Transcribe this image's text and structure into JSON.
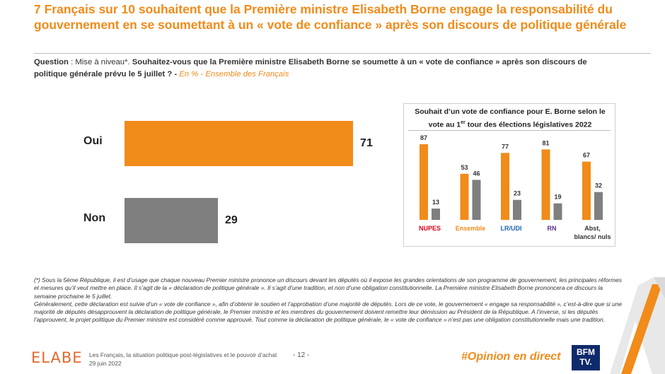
{
  "title": "7 Français sur 10 souhaitent que la Première ministre Elisabeth Borne engage la responsabilité du gouvernement en se soumettant à un « vote de confiance » après son discours de politique générale",
  "question": {
    "label": "Question",
    "sep": " : Mise à niveau*. ",
    "text": "Souhaitez-vous que la Première ministre Elisabeth Borne se soumette à un « vote de confiance » après son discours de politique générale prévu le 5 juillet ? -",
    "base": " En % - Ensemble des Français"
  },
  "colors": {
    "orange": "#f18b1a",
    "grey": "#7f7f7f"
  },
  "chart_data": [
    {
      "type": "bar",
      "orientation": "horizontal",
      "categories": [
        "Oui",
        "Non"
      ],
      "values": [
        71,
        29
      ],
      "unit": "%",
      "colors": [
        "#f18b1a",
        "#7f7f7f"
      ]
    },
    {
      "type": "bar",
      "title_line1": "Souhait d’un vote de confiance pour E. Borne selon le",
      "title_line2_a": "vote au 1",
      "title_line2_sup": "er",
      "title_line2_b": " tour des élections législatives 2022",
      "categories": [
        "NUPES",
        "Ensemble",
        "LR/UDI",
        "RN",
        "Abst, blancs/ nuls"
      ],
      "category_lines": [
        [
          "NUPES"
        ],
        [
          "Ensemble"
        ],
        [
          "LR/UDI"
        ],
        [
          "RN"
        ],
        [
          "Abst,",
          "blancs/ nuls"
        ]
      ],
      "category_colors": [
        "#e2001a",
        "#f18b1a",
        "#1f64b4",
        "#5b2d8e",
        "#333333"
      ],
      "series": [
        {
          "name": "Oui",
          "color": "#f18b1a",
          "values": [
            87,
            53,
            77,
            81,
            67
          ]
        },
        {
          "name": "Non",
          "color": "#7f7f7f",
          "values": [
            13,
            46,
            23,
            19,
            32
          ]
        }
      ],
      "ylim": [
        0,
        100
      ]
    }
  ],
  "note": {
    "p1": "(*) Sous la 5ème République, il est d’usage que chaque nouveau Premier ministre prononce un discours devant les députés où il expose les grandes orientations de son programme de gouvernement, les principales réformes et mesures qu’il veut mettre en place. Il s’agit de la « déclaration de politique générale ». Il s’agit d’une tradition, et non d’une obligation constitutionnelle. La Première ministre Elisabeth Borne prononcera ce discours la semaine prochaine le 5 juillet.",
    "p2": "Généralement, cette déclaration est suivie d’un « vote de confiance », afin d’obtenir le soutien et l’approbation d’une majorité de députés. Lors de ce vote, le gouvernement « engage sa responsabilité », c’est-à-dire que si une majorité de députés désapprouvent la déclaration de politique générale, le Premier ministre et les membres du gouvernement doivent remettre leur démission au Président de la République. A l’inverse, si les députés l’approuvent, le projet politique du Premier ministre est considéré comme approuvé. Tout comme la déclaration de politique générale, le « vote de confiance » n’est pas une obligation constitutionnelle mais une tradition."
  },
  "footer": {
    "brand": "ELABE",
    "study": "Les Français, la situation politique post-législatives et le pouvoir d’achat",
    "date": "29 juin 2022",
    "page": "- 12 -",
    "hashtag": "#Opinion en direct",
    "channel_line1": "BFM",
    "channel_line2": "TV."
  }
}
